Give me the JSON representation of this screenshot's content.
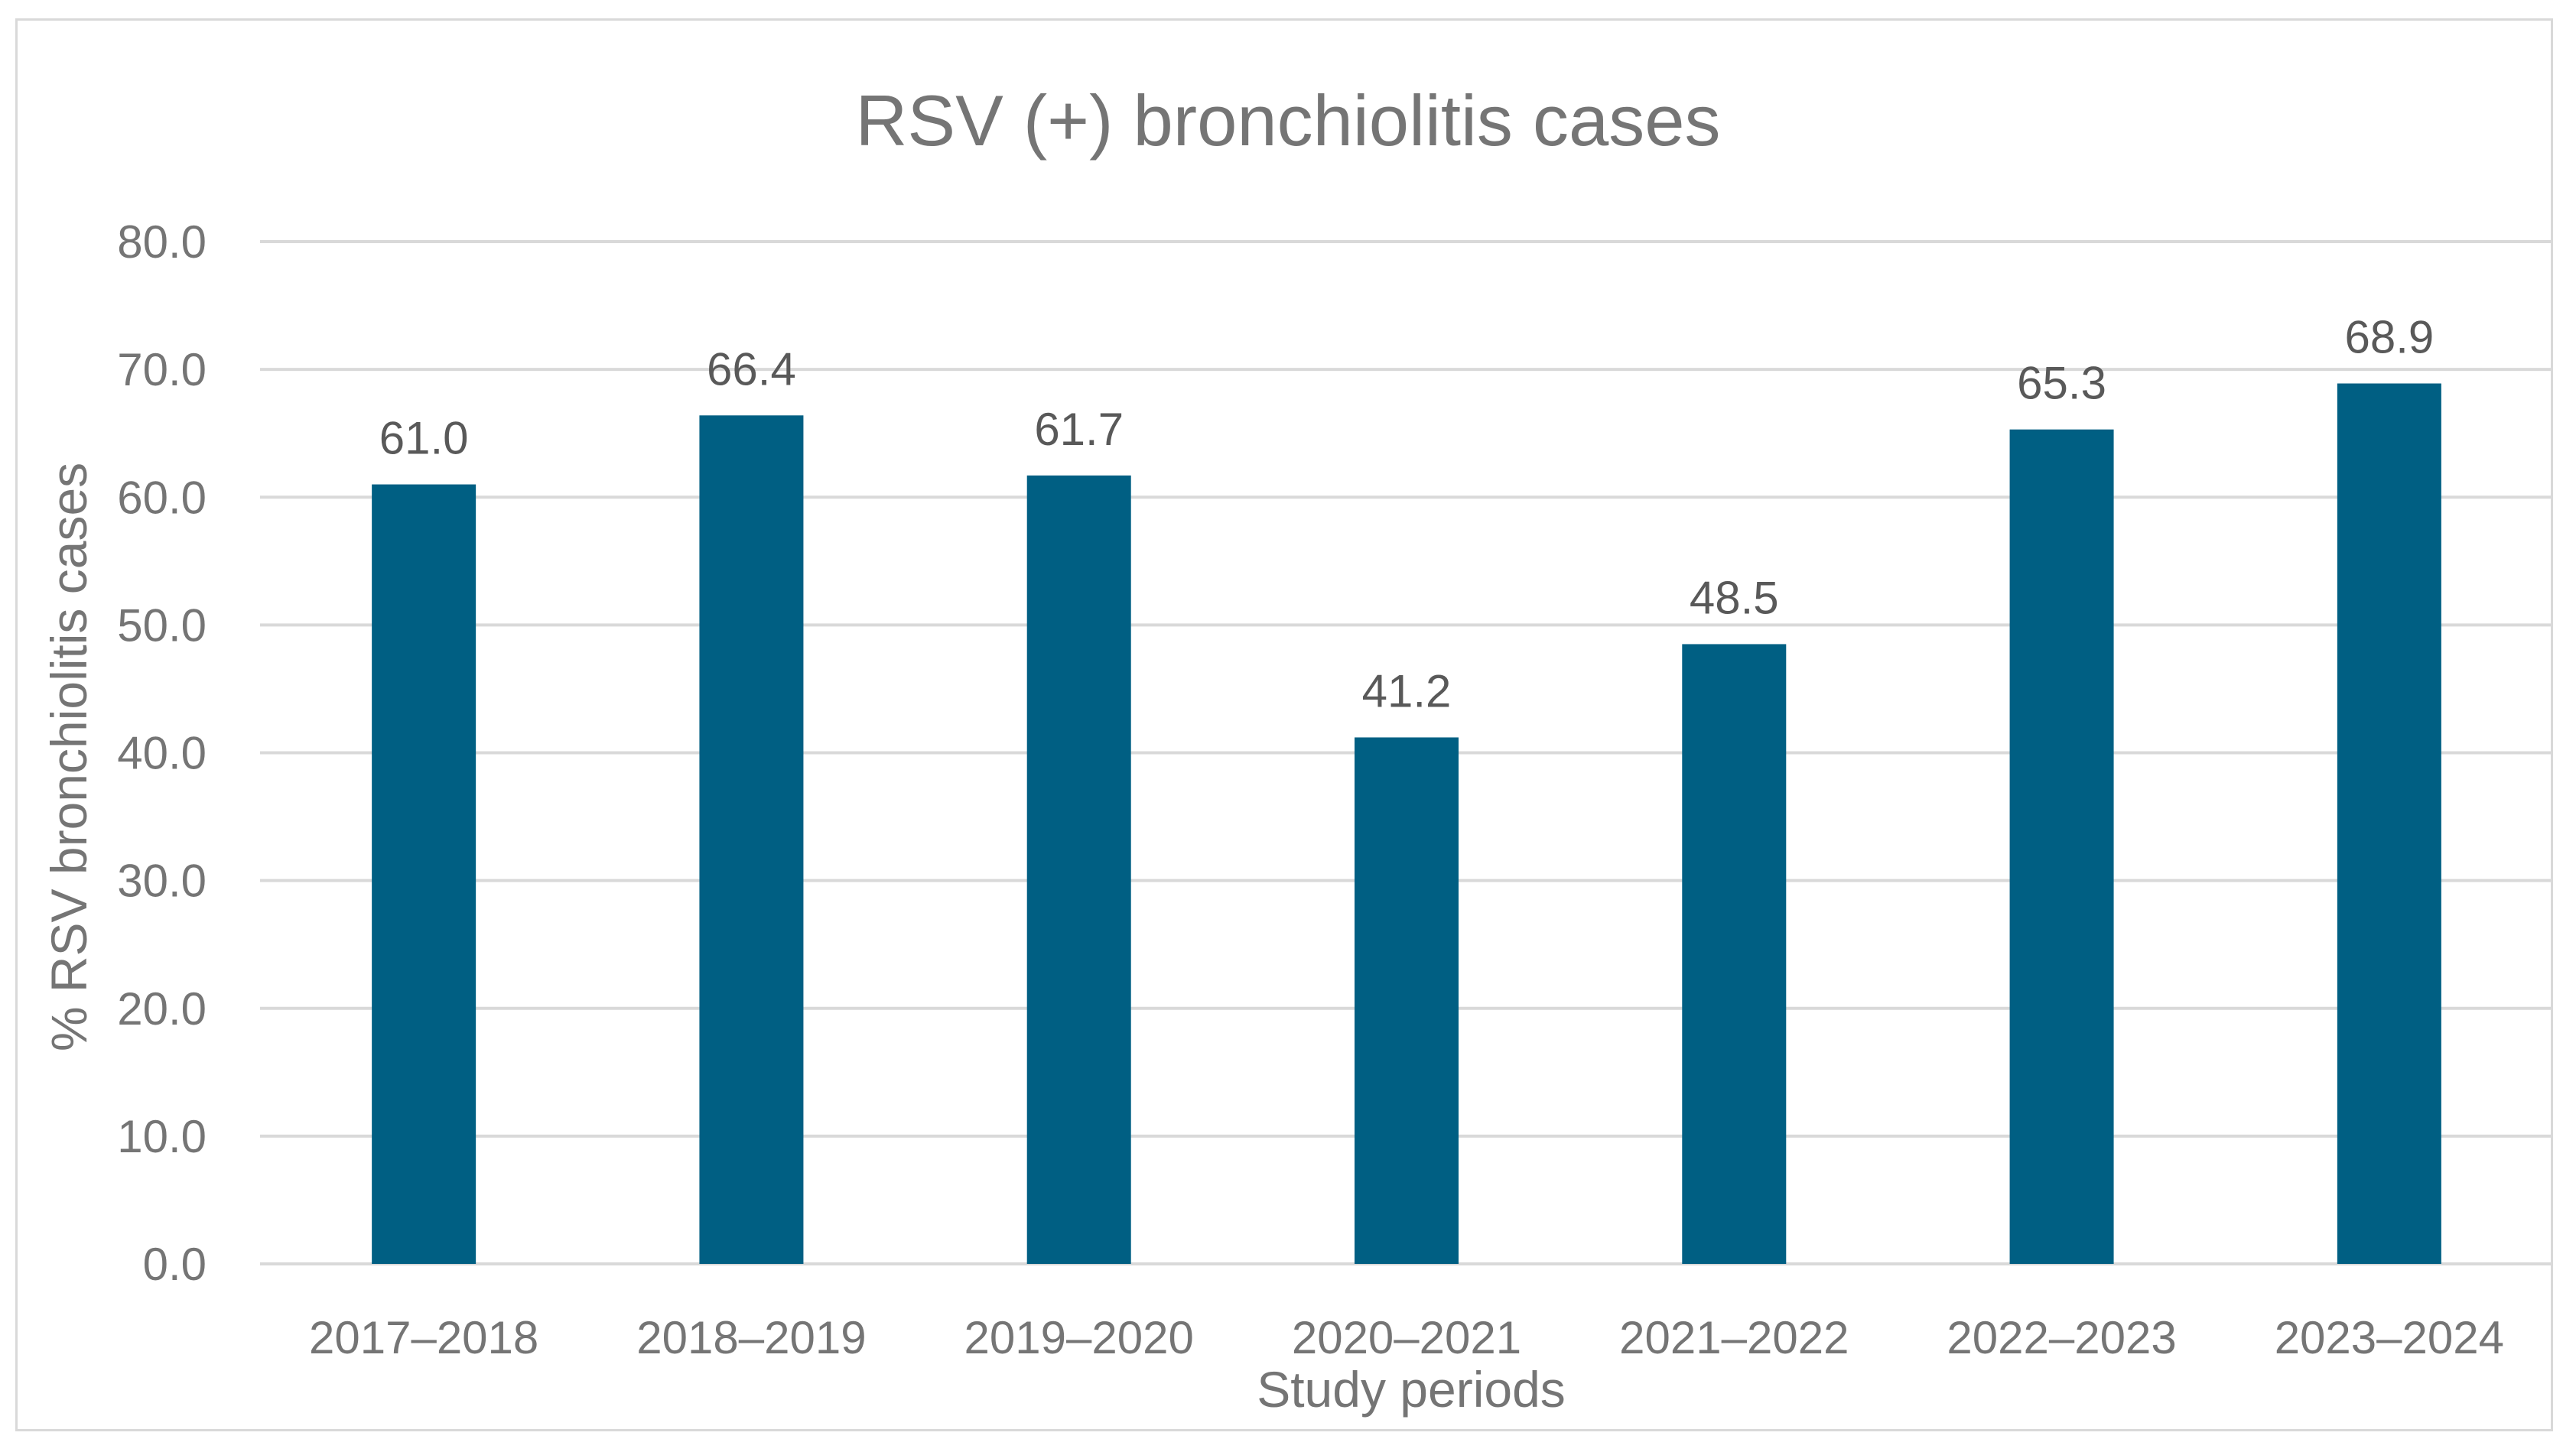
{
  "chart_data": {
    "type": "bar",
    "title": "RSV (+) bronchiolitis cases",
    "xlabel": "Study periods",
    "ylabel": "% RSV bronchiolitis cases",
    "categories": [
      "2017–2018",
      "2018–2019",
      "2019–2020",
      "2020–2021",
      "2021–2022",
      "2022–2023",
      "2023–2024"
    ],
    "values": [
      61.0,
      66.4,
      61.7,
      41.2,
      48.5,
      65.3,
      68.9
    ],
    "value_labels": [
      "61.0",
      "66.4",
      "61.7",
      "41.2",
      "48.5",
      "65.3",
      "68.9"
    ],
    "ylim": [
      0,
      80
    ],
    "yticks": [
      0,
      10,
      20,
      30,
      40,
      50,
      60,
      70,
      80
    ],
    "ytick_labels": [
      "0.0",
      "10.0",
      "20.0",
      "30.0",
      "40.0",
      "50.0",
      "60.0",
      "70.0",
      "80.0"
    ],
    "grid": true,
    "legend": "none",
    "bar_color": "#005f83"
  }
}
